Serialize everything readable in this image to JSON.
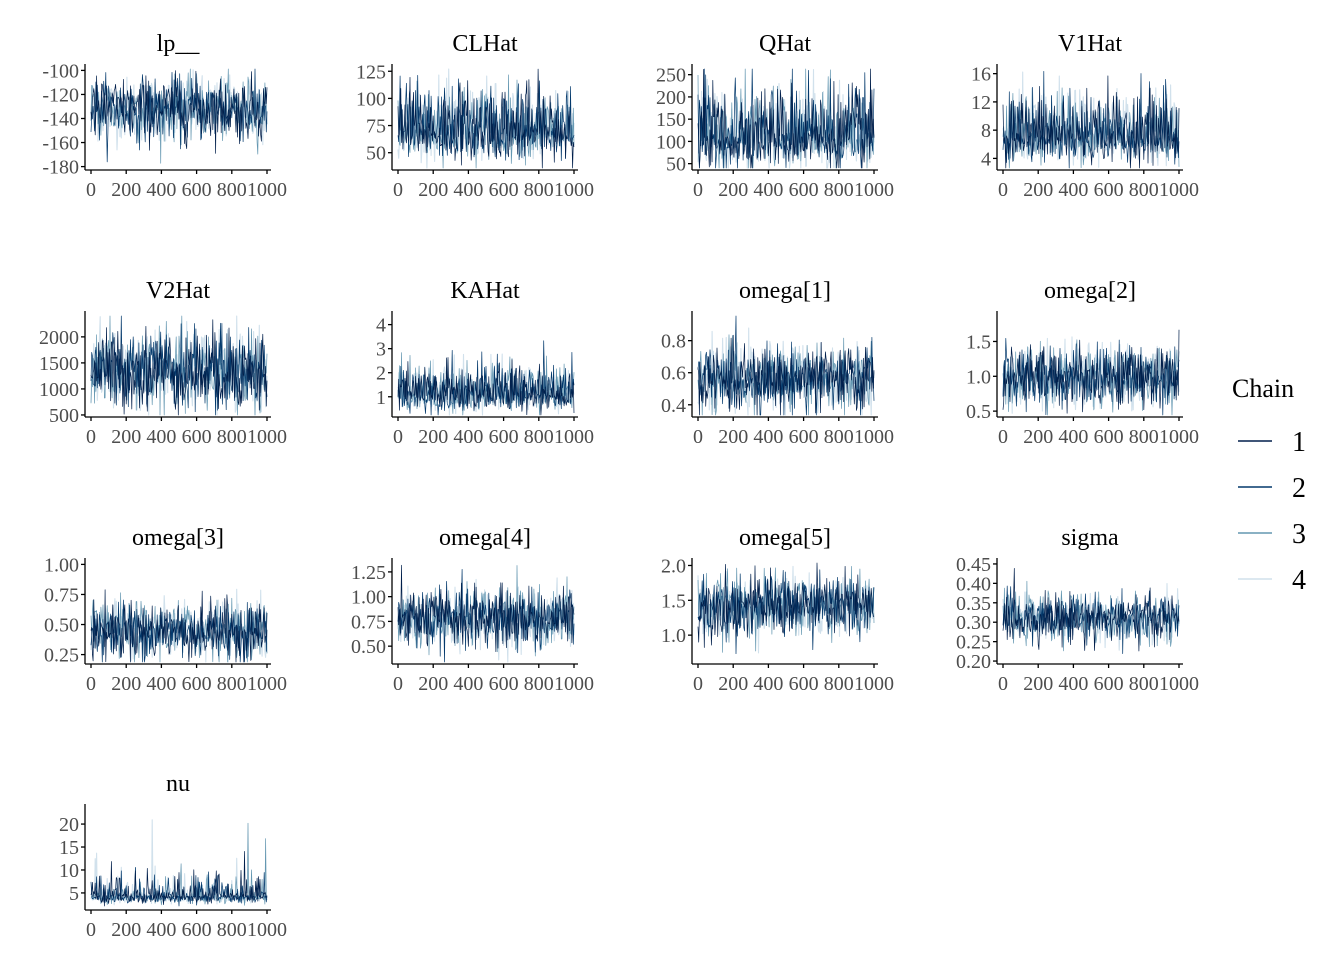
{
  "chart_data": {
    "type": "line",
    "description_source": "MCMC trace plots, 4 chains, 1000 iterations each",
    "x": {
      "range": [
        0,
        1000
      ],
      "ticks": [
        0,
        200,
        400,
        600,
        800,
        1000
      ],
      "tick_labels": [
        "0",
        "200",
        "400",
        "600",
        "800",
        "1000"
      ]
    },
    "legend": {
      "title": "Chain",
      "position": "right",
      "entries": [
        {
          "label": "1",
          "color": "#011f4b"
        },
        {
          "label": "2",
          "color": "#03396c"
        },
        {
          "label": "3",
          "color": "#6497b1"
        },
        {
          "label": "4",
          "color": "#d1e1ec"
        }
      ]
    },
    "panels": [
      {
        "title": "lp__",
        "ylim": [
          -182,
          -98
        ],
        "yticks": [
          -100,
          -120,
          -140,
          -160,
          -180
        ],
        "ytick_labels": [
          "-100",
          "-120",
          "-140",
          "-160",
          "-180"
        ],
        "center": -132,
        "spread": 13,
        "skew": 0
      },
      {
        "title": "CLHat",
        "ylim": [
          35,
          128
        ],
        "yticks": [
          50,
          75,
          100,
          125
        ],
        "ytick_labels": [
          "50",
          "75",
          "100",
          "125"
        ],
        "center": 68,
        "spread": 15,
        "skew": 1
      },
      {
        "title": "QHat",
        "ylim": [
          38,
          265
        ],
        "yticks": [
          50,
          100,
          150,
          200,
          250
        ],
        "ytick_labels": [
          "50",
          "100",
          "150",
          "200",
          "250"
        ],
        "center": 105,
        "spread": 40,
        "skew": 1
      },
      {
        "title": "V1Hat",
        "ylim": [
          2.5,
          16.8
        ],
        "yticks": [
          4,
          8,
          12,
          16
        ],
        "ytick_labels": [
          "4",
          "8",
          "12",
          "16"
        ],
        "center": 7,
        "spread": 2.2,
        "skew": 1
      },
      {
        "title": "V2Hat",
        "ylim": [
          480,
          2420
        ],
        "yticks": [
          500,
          1000,
          1500,
          2000
        ],
        "ytick_labels": [
          "500",
          "1000",
          "1500",
          "2000"
        ],
        "center": 1350,
        "spread": 380,
        "skew": 0
      },
      {
        "title": "KAHat",
        "ylim": [
          0.2,
          4.4
        ],
        "yticks": [
          1,
          2,
          3,
          4
        ],
        "ytick_labels": [
          "1",
          "2",
          "3",
          "4"
        ],
        "center": 1.1,
        "spread": 0.45,
        "skew": 1
      },
      {
        "title": "omega[1]",
        "ylim": [
          0.33,
          0.96
        ],
        "yticks": [
          0.4,
          0.6,
          0.8
        ],
        "ytick_labels": [
          "0.4",
          "0.6",
          "0.8"
        ],
        "center": 0.56,
        "spread": 0.1,
        "skew": 0
      },
      {
        "title": "omega[2]",
        "ylim": [
          0.43,
          1.88
        ],
        "yticks": [
          0.5,
          1.0,
          1.5
        ],
        "ytick_labels": [
          "0.5",
          "1.0",
          "1.5"
        ],
        "center": 1.0,
        "spread": 0.22,
        "skew": 0
      },
      {
        "title": "omega[3]",
        "ylim": [
          0.18,
          1.02
        ],
        "yticks": [
          0.25,
          0.5,
          0.75,
          1.0
        ],
        "ytick_labels": [
          "0.25",
          "0.50",
          "0.75",
          "1.00"
        ],
        "center": 0.45,
        "spread": 0.12,
        "skew": 0
      },
      {
        "title": "omega[4]",
        "ylim": [
          0.33,
          1.35
        ],
        "yticks": [
          0.5,
          0.75,
          1.0,
          1.25
        ],
        "ytick_labels": [
          "0.50",
          "0.75",
          "1.00",
          "1.25"
        ],
        "center": 0.78,
        "spread": 0.15,
        "skew": 0
      },
      {
        "title": "omega[5]",
        "ylim": [
          0.6,
          2.05
        ],
        "yticks": [
          1.0,
          1.5,
          2.0
        ],
        "ytick_labels": [
          "1.0",
          "1.5",
          "2.0"
        ],
        "center": 1.42,
        "spread": 0.22,
        "skew": 0
      },
      {
        "title": "sigma",
        "ylim": [
          0.195,
          0.455
        ],
        "yticks": [
          0.2,
          0.25,
          0.3,
          0.35,
          0.4,
          0.45
        ],
        "ytick_labels": [
          "0.20",
          "0.25",
          "0.30",
          "0.35",
          "0.40",
          "0.45"
        ],
        "center": 0.31,
        "spread": 0.03,
        "skew": 0
      },
      {
        "title": "nu",
        "ylim": [
          1.5,
          23.5
        ],
        "yticks": [
          5,
          10,
          15,
          20
        ],
        "ytick_labels": [
          "5",
          "10",
          "15",
          "20"
        ],
        "center": 4.2,
        "spread": 1.4,
        "skew": 2
      }
    ]
  }
}
